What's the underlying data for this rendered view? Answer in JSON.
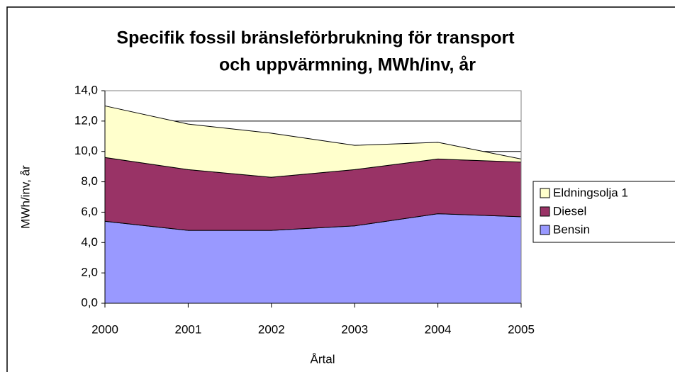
{
  "chart_data": {
    "type": "stacked_area",
    "title": [
      "Specifik fossil bränsleförbrukning för transport",
      "och uppvärmning, MWh/inv, år"
    ],
    "xlabel": "Årtal",
    "ylabel": "MWh/inv, år",
    "x": [
      2000,
      2001,
      2002,
      2003,
      2004,
      2005
    ],
    "xlim": [
      2000,
      2005
    ],
    "xticks": [
      2000,
      2001,
      2002,
      2003,
      2004,
      2005
    ],
    "ylim": [
      0,
      14
    ],
    "yticks": [
      {
        "value": 0,
        "label": "0,0"
      },
      {
        "value": 2,
        "label": "2,0"
      },
      {
        "value": 4,
        "label": "4,0"
      },
      {
        "value": 6,
        "label": "6,0"
      },
      {
        "value": 8,
        "label": "8,0"
      },
      {
        "value": 10,
        "label": "10,0"
      },
      {
        "value": 12,
        "label": "12,0"
      },
      {
        "value": 14,
        "label": "14,0"
      }
    ],
    "grid": true,
    "legend": "right",
    "series": [
      {
        "name": "Bensin",
        "color": "#9999ff",
        "values": [
          5.4,
          4.8,
          4.8,
          5.1,
          5.9,
          5.7
        ]
      },
      {
        "name": "Diesel",
        "color": "#993366",
        "values": [
          4.2,
          4.0,
          3.5,
          3.7,
          3.6,
          3.6
        ]
      },
      {
        "name": "Eldningsolja 1",
        "color": "#ffffcc",
        "values": [
          3.4,
          3.0,
          2.9,
          1.6,
          1.1,
          0.2
        ]
      }
    ]
  }
}
